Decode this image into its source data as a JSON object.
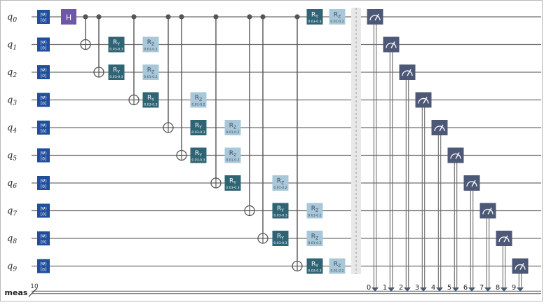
{
  "circuit": {
    "qubit_labels": [
      "q0",
      "q1",
      "q2",
      "q3",
      "q4",
      "q5",
      "q6",
      "q7",
      "q8",
      "q9"
    ],
    "classical_register": {
      "name": "meas",
      "size": "10"
    },
    "init_gate": {
      "top": "|Ψ⟩",
      "bottom": "[0]"
    },
    "h_gate": {
      "label": "H",
      "qubit": 0
    },
    "cnots": [
      {
        "control": 0,
        "target": 1
      },
      {
        "control": 0,
        "target": 2
      },
      {
        "control": 0,
        "target": 3
      },
      {
        "control": 0,
        "target": 4
      },
      {
        "control": 0,
        "target": 5
      },
      {
        "control": 0,
        "target": 6
      },
      {
        "control": 0,
        "target": 7
      },
      {
        "control": 0,
        "target": 8
      },
      {
        "control": 0,
        "target": 9
      }
    ],
    "ry_gate": {
      "main": "R",
      "sub": "Y",
      "param": "0.03-0.3"
    },
    "rz_gate": {
      "main": "R",
      "sub": "Z",
      "param": "0.01-0.2"
    },
    "rotations": [
      {
        "qubit": 1,
        "ry_slot": 3,
        "rz_slot": 4
      },
      {
        "qubit": 2,
        "ry_slot": 3,
        "rz_slot": 4
      },
      {
        "qubit": 3,
        "ry_slot": 4,
        "rz_slot": 5
      },
      {
        "qubit": 4,
        "ry_slot": 5,
        "rz_slot": 6
      },
      {
        "qubit": 5,
        "ry_slot": 5,
        "rz_slot": 6
      },
      {
        "qubit": 6,
        "ry_slot": 6,
        "rz_slot": 7
      },
      {
        "qubit": 7,
        "ry_slot": 7,
        "rz_slot": 8
      },
      {
        "qubit": 8,
        "ry_slot": 7,
        "rz_slot": 8
      },
      {
        "qubit": 9,
        "ry_slot": 8,
        "rz_slot": 9
      },
      {
        "qubit": 0,
        "ry_slot": 8,
        "rz_slot": 9
      }
    ],
    "measurement_bits": [
      "0",
      "1",
      "2",
      "3",
      "4",
      "5",
      "6",
      "7",
      "8",
      "9"
    ],
    "colors": {
      "init": "#1f4e9c",
      "h": "#6e56a8",
      "cnot": "#555555",
      "ry": "#2f6474",
      "rz": "#a8c7d8",
      "measure": "#4d5877",
      "wire": "#6f6f6f",
      "barrier": "#e8e8e8"
    }
  }
}
